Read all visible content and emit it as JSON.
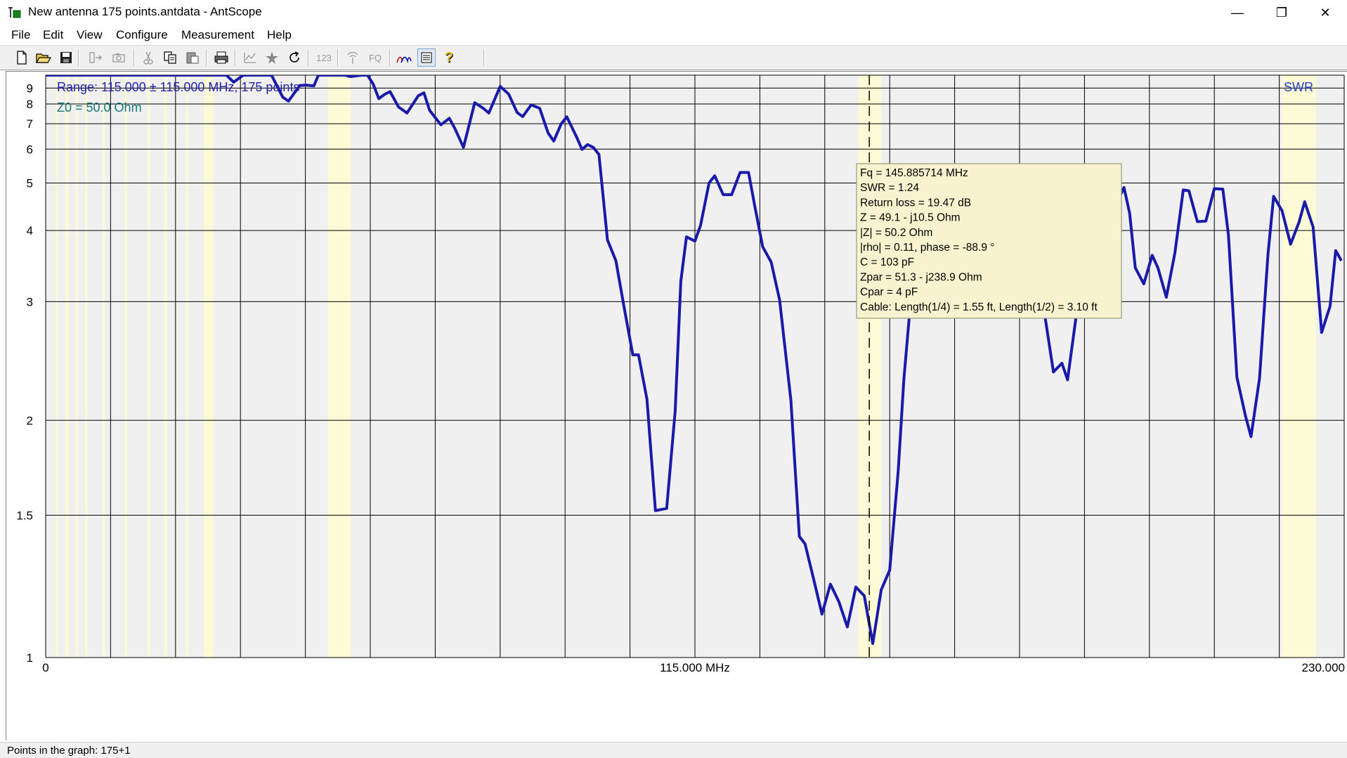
{
  "window": {
    "title": "New antenna 175 points.antdata - AntScope",
    "minimize_glyph": "—",
    "restore_glyph": "❐",
    "close_glyph": "✕"
  },
  "menu": [
    "File",
    "Edit",
    "View",
    "Configure",
    "Measurement",
    "Help"
  ],
  "toolbar": {
    "icons": [
      "new-file-icon",
      "open-folder-icon",
      "save-icon",
      "export-icon",
      "camera-icon",
      "cut-icon",
      "copy-icon",
      "paste-icon",
      "print-icon",
      "chart-icon",
      "star-icon",
      "refresh-icon",
      "numbers-icon",
      "antenna-icon",
      "fq-icon",
      "curves-icon",
      "list-icon",
      "help-icon"
    ],
    "numbers_label": "123",
    "fq_label": "FQ",
    "help_label": "?"
  },
  "graph": {
    "range_text": "Range: 115.000 ± 115.000 MHz, 175 points",
    "z0_text": "Z0 = 50.0 Ohm",
    "mode_label": "SWR",
    "x_labels": [
      "0",
      "115.000 MHz",
      "230.000"
    ],
    "y_labels": [
      "9",
      "8",
      "7",
      "6",
      "5",
      "4",
      "3",
      "2",
      "1.5",
      "1"
    ],
    "colors": {
      "trace": "#1a1aaa",
      "band": "#fdfbd6",
      "plot_bg": "#f0f0f0",
      "grid": "#000000",
      "range_text": "#2222aa",
      "z0_text": "#1a7a7a",
      "swr_label": "#1f40c8"
    }
  },
  "chart_data": {
    "type": "line",
    "xlabel": "",
    "ylabel": "",
    "xlim": [
      0,
      230
    ],
    "ylim": [
      1,
      10
    ],
    "x_unit": "MHz",
    "y_scale": "swr",
    "series": [
      {
        "name": "",
        "x": [
          0,
          10,
          20,
          30,
          32,
          33.3,
          35,
          36.5,
          37.3,
          39,
          40,
          42,
          43,
          45,
          46,
          47.5,
          48.3,
          51,
          53,
          54,
          56,
          57,
          58,
          59,
          60,
          61,
          62.5,
          64,
          66,
          67,
          68,
          70,
          71.5,
          72.5,
          74,
          76,
          77.5,
          78.5,
          80.5,
          82,
          83.5,
          84.5,
          86,
          87.5,
          89,
          90,
          91.3,
          92.3,
          94,
          95,
          96,
          97,
          98,
          99.5,
          101,
          102.5,
          104,
          105,
          106.5,
          108,
          110,
          111.5,
          112.5,
          113.5,
          115,
          116,
          117.5,
          118.5,
          120,
          121.5,
          123,
          124.5,
          125.5,
          127,
          128.5,
          130,
          132,
          133.5,
          134.5,
          136,
          137.5,
          139,
          140.5,
          142,
          143.5,
          145,
          146.5,
          148,
          149.5,
          151,
          152,
          153.5,
          155,
          156.5,
          158,
          159,
          160.5,
          162,
          163,
          164,
          165.5,
          167,
          168.5,
          169.5,
          171,
          172.5,
          173.5,
          175,
          176,
          177,
          178.5,
          180,
          181,
          182.5,
          184,
          185,
          186.5,
          188,
          189.5,
          191,
          192,
          193,
          194.5,
          196,
          197,
          198.5,
          200,
          201.5,
          202.5,
          204,
          205.5,
          207,
          208.5,
          209.5,
          211,
          212.5,
          213.5,
          215,
          216.5,
          217.5,
          219,
          220.5,
          222,
          223,
          224.5,
          226,
          227.5,
          228.5,
          229.5
        ],
        "y": [
          10,
          10,
          10,
          10,
          10,
          9.44,
          10,
          10,
          10,
          10,
          10,
          8.4,
          8.16,
          9.18,
          9.22,
          9.16,
          10,
          10,
          10,
          9.88,
          10,
          10,
          9.3,
          8.31,
          8.57,
          8.76,
          7.83,
          7.51,
          8.49,
          8.68,
          7.65,
          6.95,
          7.25,
          6.78,
          6.06,
          8.07,
          7.76,
          7.51,
          9.12,
          8.6,
          7.54,
          7.33,
          7.95,
          7.76,
          6.6,
          6.29,
          6.99,
          7.32,
          6.46,
          5.99,
          6.16,
          6.06,
          5.82,
          3.84,
          3.52,
          2.92,
          2.48,
          2.48,
          2.14,
          1.52,
          1.53,
          2.06,
          3.24,
          3.89,
          3.82,
          4.09,
          5.0,
          5.19,
          4.72,
          4.72,
          5.28,
          5.28,
          4.53,
          3.73,
          3.5,
          3.02,
          2.13,
          1.41,
          1.38,
          1.25,
          1.13,
          1.23,
          1.17,
          1.09,
          1.22,
          1.19,
          1.04,
          1.21,
          1.28,
          1.71,
          2.28,
          3.23,
          3.41,
          3.63,
          4.5,
          5.16,
          4.83,
          4.06,
          4.0,
          4.38,
          4.11,
          3.35,
          3.5,
          4.3,
          4.3,
          3.77,
          3.87,
          4.38,
          4.03,
          2.84,
          2.34,
          2.41,
          2.28,
          2.83,
          3.95,
          4.52,
          4.19,
          3.9,
          4.48,
          4.89,
          4.32,
          3.42,
          3.21,
          3.6,
          3.42,
          3.05,
          3.63,
          4.83,
          4.81,
          4.16,
          4.17,
          4.86,
          4.85,
          3.92,
          2.3,
          2.03,
          1.9,
          2.29,
          3.61,
          4.68,
          4.37,
          3.77,
          4.15,
          4.56,
          4.06,
          2.68,
          2.95,
          3.67,
          3.52
        ]
      }
    ],
    "marker": {
      "frequency_mhz": 145.885714,
      "readout": [
        "Fq = 145.885714 MHz",
        "SWR = 1.24",
        "Return loss = 19.47 dB",
        "Z = 49.1 - j10.5 Ohm",
        "|Z| = 50.2 Ohm",
        "|rho| = 0.11, phase = -88.9 °",
        "C = 103 pF",
        "Zpar = 51.3 - j238.9 Ohm",
        "Cpar = 4 pF",
        "Cable: Length(1/4) = 1.55 ft, Length(1/2) = 3.10 ft"
      ]
    },
    "bands_mhz": [
      [
        1.8,
        2.0
      ],
      [
        3.5,
        4.0
      ],
      [
        5.3,
        5.4
      ],
      [
        7.0,
        7.3
      ],
      [
        10.1,
        10.15
      ],
      [
        14.0,
        14.35
      ],
      [
        18.068,
        18.168
      ],
      [
        21.0,
        21.45
      ],
      [
        24.89,
        24.99
      ],
      [
        28.0,
        29.7
      ],
      [
        50,
        54
      ],
      [
        144,
        148
      ],
      [
        219,
        225
      ]
    ],
    "grid": true
  },
  "status": {
    "text": "Points in the graph: 175+1"
  }
}
